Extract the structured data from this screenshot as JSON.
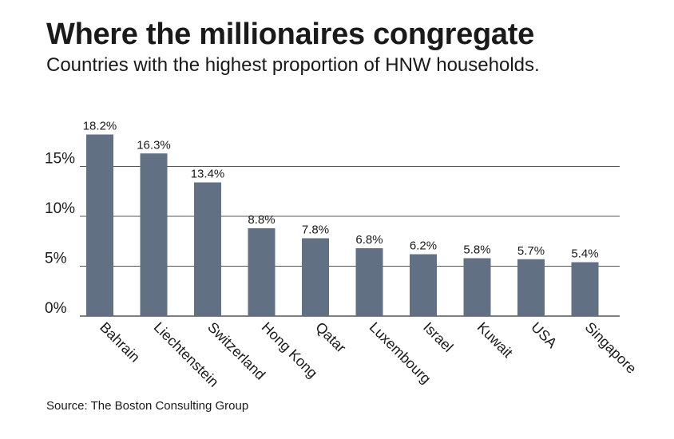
{
  "colors": {
    "bar": "#627083",
    "grid": "#555555",
    "text": "#1a1a1a"
  },
  "chart_data": {
    "type": "bar",
    "title": "Where the millionaires congregate",
    "subtitle": "Countries with the highest proportion of HNW households.",
    "xlabel": "",
    "ylabel": "",
    "ylim": [
      0,
      19
    ],
    "yticks": [
      0,
      5,
      10,
      15
    ],
    "ytick_labels": [
      "0%",
      "5%",
      "10%",
      "15%"
    ],
    "grid": true,
    "categories": [
      "Bahrain",
      "Liechtenstein",
      "Switzerland",
      "Hong Kong",
      "Qatar",
      "Luxembourg",
      "Israel",
      "Kuwait",
      "USA",
      "Singapore"
    ],
    "values": [
      18.2,
      16.3,
      13.4,
      8.8,
      7.8,
      6.8,
      6.2,
      5.8,
      5.7,
      5.4
    ],
    "data_labels": [
      "18.2%",
      "16.3%",
      "13.4%",
      "8.8%",
      "7.8%",
      "6.8%",
      "6.2%",
      "5.8%",
      "5.7%",
      "5.4%"
    ],
    "source": "Source: The Boston Consulting Group"
  }
}
